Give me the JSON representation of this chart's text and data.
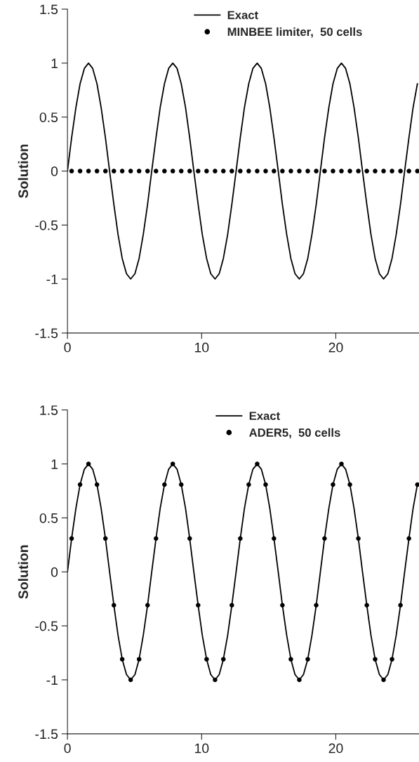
{
  "chart_data": [
    {
      "type": "line",
      "ylabel": "Solution",
      "xlim": [
        0,
        26.2
      ],
      "xticks": [
        0,
        10,
        20
      ],
      "ylim": [
        -1.5,
        1.5
      ],
      "yticks": [
        -1.5,
        -1,
        -0.5,
        0,
        0.5,
        1,
        1.5
      ],
      "grid": false,
      "legend": "top",
      "series": [
        {
          "name": "Exact",
          "type": "line",
          "color": "#000000",
          "marker": "none",
          "x": [
            0,
            0.31,
            0.63,
            0.94,
            1.26,
            1.57,
            1.88,
            2.2,
            2.51,
            2.83,
            3.14,
            3.46,
            3.77,
            4.08,
            4.4,
            4.71,
            5.03,
            5.34,
            5.65,
            5.97,
            6.28,
            6.6,
            6.91,
            7.23,
            7.54,
            7.85,
            8.17,
            8.48,
            8.8,
            9.11,
            9.42,
            9.74,
            10.05,
            10.37,
            10.68,
            11.0,
            11.31,
            11.62,
            11.94,
            12.25,
            12.57,
            12.88,
            13.19,
            13.51,
            13.82,
            14.14,
            14.45,
            14.77,
            15.08,
            15.39,
            15.71,
            16.02,
            16.34,
            16.65,
            16.96,
            17.28,
            17.59,
            17.91,
            18.22,
            18.54,
            18.85,
            19.16,
            19.48,
            19.79,
            20.11,
            20.42,
            20.73,
            21.05,
            21.36,
            21.68,
            21.99,
            22.31,
            22.62,
            22.93,
            23.25,
            23.56,
            23.88,
            24.19,
            24.5,
            24.82,
            25.13,
            25.45,
            25.76,
            26.08
          ],
          "values": [
            0,
            0.309,
            0.588,
            0.809,
            0.951,
            1,
            0.951,
            0.809,
            0.588,
            0.309,
            0,
            -0.309,
            -0.588,
            -0.809,
            -0.951,
            -1,
            -0.951,
            -0.809,
            -0.588,
            -0.309,
            0,
            0.309,
            0.588,
            0.809,
            0.951,
            1,
            0.951,
            0.809,
            0.588,
            0.309,
            0,
            -0.309,
            -0.588,
            -0.809,
            -0.951,
            -1,
            -0.951,
            -0.809,
            -0.588,
            -0.309,
            0,
            0.309,
            0.588,
            0.809,
            0.951,
            1,
            0.951,
            0.809,
            0.588,
            0.309,
            0,
            -0.309,
            -0.588,
            -0.809,
            -0.951,
            -1,
            -0.951,
            -0.809,
            -0.588,
            -0.309,
            0,
            0.309,
            0.588,
            0.809,
            0.951,
            1,
            0.951,
            0.809,
            0.588,
            0.309,
            0,
            -0.309,
            -0.588,
            -0.809,
            -0.951,
            -1,
            -0.951,
            -0.809,
            -0.588,
            -0.309,
            0,
            0.309,
            0.588,
            0.809
          ]
        },
        {
          "name": "MINBEE limiter,  50 cells",
          "type": "scatter",
          "color": "#000000",
          "marker": "circle",
          "x": [
            0.31,
            0.94,
            1.57,
            2.2,
            2.83,
            3.46,
            4.08,
            4.71,
            5.34,
            5.97,
            6.6,
            7.23,
            7.85,
            8.48,
            9.11,
            9.74,
            10.37,
            11.0,
            11.62,
            12.25,
            12.88,
            13.51,
            14.14,
            14.77,
            15.39,
            16.02,
            16.65,
            17.28,
            17.91,
            18.54,
            19.16,
            19.79,
            20.42,
            21.05,
            21.68,
            22.31,
            22.93,
            23.56,
            24.19,
            24.82,
            25.45,
            26.08
          ],
          "values": [
            0,
            0,
            0,
            0,
            0,
            0,
            0,
            0,
            0,
            0,
            0,
            0,
            0,
            0,
            0,
            0,
            0,
            0,
            0,
            0,
            0,
            0,
            0,
            0,
            0,
            0,
            0,
            0,
            0,
            0,
            0,
            0,
            0,
            0,
            0,
            0,
            0,
            0,
            0,
            0,
            0,
            0
          ]
        }
      ]
    },
    {
      "type": "line",
      "ylabel": "Solution",
      "xlim": [
        0,
        26.2
      ],
      "xticks": [
        0,
        10,
        20
      ],
      "ylim": [
        -1.5,
        1.5
      ],
      "yticks": [
        -1.5,
        -1,
        -0.5,
        0,
        0.5,
        1,
        1.5
      ],
      "grid": false,
      "legend": "top",
      "series": [
        {
          "name": "Exact",
          "type": "line",
          "color": "#000000",
          "marker": "none",
          "x": [
            0,
            0.31,
            0.63,
            0.94,
            1.26,
            1.57,
            1.88,
            2.2,
            2.51,
            2.83,
            3.14,
            3.46,
            3.77,
            4.08,
            4.4,
            4.71,
            5.03,
            5.34,
            5.65,
            5.97,
            6.28,
            6.6,
            6.91,
            7.23,
            7.54,
            7.85,
            8.17,
            8.48,
            8.8,
            9.11,
            9.42,
            9.74,
            10.05,
            10.37,
            10.68,
            11.0,
            11.31,
            11.62,
            11.94,
            12.25,
            12.57,
            12.88,
            13.19,
            13.51,
            13.82,
            14.14,
            14.45,
            14.77,
            15.08,
            15.39,
            15.71,
            16.02,
            16.34,
            16.65,
            16.96,
            17.28,
            17.59,
            17.91,
            18.22,
            18.54,
            18.85,
            19.16,
            19.48,
            19.79,
            20.11,
            20.42,
            20.73,
            21.05,
            21.36,
            21.68,
            21.99,
            22.31,
            22.62,
            22.93,
            23.25,
            23.56,
            23.88,
            24.19,
            24.5,
            24.82,
            25.13,
            25.45,
            25.76,
            26.08
          ],
          "values": [
            0,
            0.309,
            0.588,
            0.809,
            0.951,
            1,
            0.951,
            0.809,
            0.588,
            0.309,
            0,
            -0.309,
            -0.588,
            -0.809,
            -0.951,
            -1,
            -0.951,
            -0.809,
            -0.588,
            -0.309,
            0,
            0.309,
            0.588,
            0.809,
            0.951,
            1,
            0.951,
            0.809,
            0.588,
            0.309,
            0,
            -0.309,
            -0.588,
            -0.809,
            -0.951,
            -1,
            -0.951,
            -0.809,
            -0.588,
            -0.309,
            0,
            0.309,
            0.588,
            0.809,
            0.951,
            1,
            0.951,
            0.809,
            0.588,
            0.309,
            0,
            -0.309,
            -0.588,
            -0.809,
            -0.951,
            -1,
            -0.951,
            -0.809,
            -0.588,
            -0.309,
            0,
            0.309,
            0.588,
            0.809,
            0.951,
            1,
            0.951,
            0.809,
            0.588,
            0.309,
            0,
            -0.309,
            -0.588,
            -0.809,
            -0.951,
            -1,
            -0.951,
            -0.809,
            -0.588,
            -0.309,
            0,
            0.309,
            0.588,
            0.809
          ]
        },
        {
          "name": "ADER5,  50 cells",
          "type": "scatter",
          "color": "#000000",
          "marker": "circle",
          "x": [
            0.31,
            0.94,
            1.57,
            2.2,
            2.83,
            3.46,
            4.08,
            4.71,
            5.34,
            5.97,
            6.6,
            7.23,
            7.85,
            8.48,
            9.11,
            9.74,
            10.37,
            11.0,
            11.62,
            12.25,
            12.88,
            13.51,
            14.14,
            14.77,
            15.39,
            16.02,
            16.65,
            17.28,
            17.91,
            18.54,
            19.16,
            19.79,
            20.42,
            21.05,
            21.68,
            22.31,
            22.93,
            23.56,
            24.19,
            24.82,
            25.45,
            26.08
          ],
          "values": [
            0.309,
            0.809,
            1,
            0.809,
            0.309,
            -0.309,
            -0.809,
            -1,
            -0.809,
            -0.309,
            0.309,
            0.809,
            1,
            0.809,
            0.309,
            -0.309,
            -0.809,
            -1,
            -0.809,
            -0.309,
            0.309,
            0.809,
            1,
            0.809,
            0.309,
            -0.309,
            -0.809,
            -1,
            -0.809,
            -0.309,
            0.309,
            0.809,
            1,
            0.809,
            0.309,
            -0.309,
            -0.809,
            -1,
            -0.809,
            -0.309,
            0.309,
            0.809
          ]
        }
      ]
    }
  ]
}
